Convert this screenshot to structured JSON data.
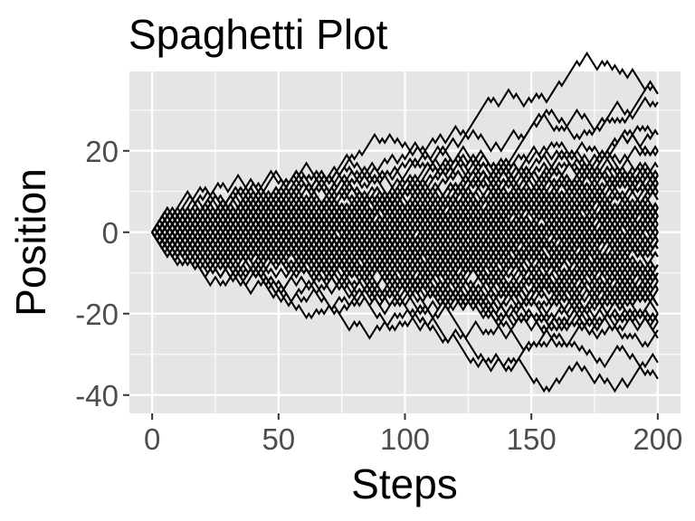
{
  "chart_data": {
    "type": "line",
    "title": "Spaghetti Plot",
    "xlabel": "Steps",
    "ylabel": "Position",
    "xlim": [
      -9,
      209
    ],
    "ylim": [
      -44.5,
      39.5
    ],
    "x_ticks": [
      0,
      50,
      100,
      150,
      200
    ],
    "x_tick_labels": [
      "0",
      "50",
      "100",
      "150",
      "200"
    ],
    "y_ticks": [
      -40,
      -20,
      0,
      20
    ],
    "y_tick_labels": [
      "-40",
      "-20",
      "0",
      "20"
    ],
    "grid": true,
    "legend": "none",
    "series_count": 100,
    "steps": 200,
    "step_size": 1,
    "start_position": 0,
    "colors": {
      "panel": "#e5e5e5",
      "grid": "#ffffff",
      "line": "#000000",
      "tick_text": "#4d4d4d"
    }
  }
}
